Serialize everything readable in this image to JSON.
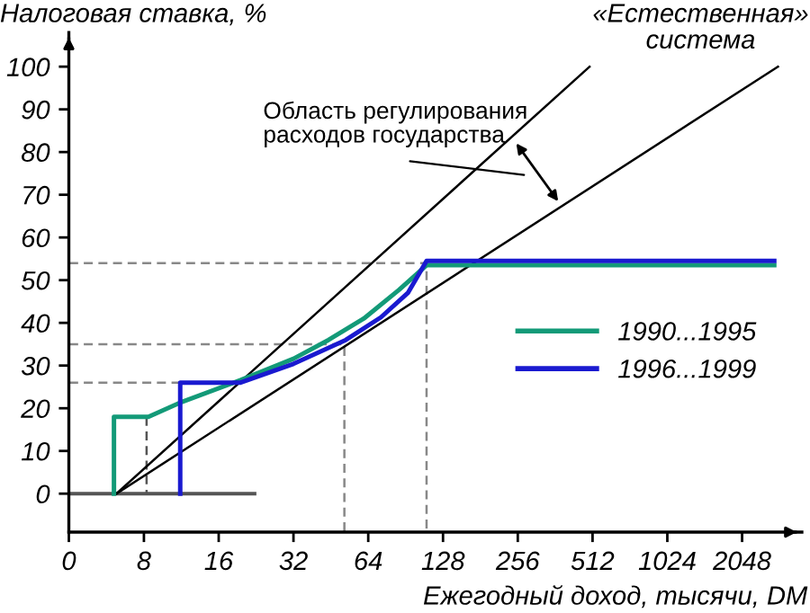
{
  "chart_data": {
    "type": "line",
    "ylabel": "Налоговая ставка, %",
    "xlabel": "Ежегодный доход, тысячи, DM",
    "log": "x",
    "xlim": [
      0,
      3565
    ],
    "ylim": [
      -9,
      108
    ],
    "xticks": [
      0,
      8,
      16,
      32,
      64,
      128,
      256,
      512,
      1024,
      2048
    ],
    "yticks": [
      0,
      10,
      20,
      30,
      40,
      50,
      60,
      70,
      80,
      90,
      100
    ],
    "series": [
      {
        "color": "#888888",
        "line_style": "dashed",
        "x": [
          4,
          109.9,
          109.9
        ],
        "values": [
          54,
          54,
          -9
        ]
      },
      {
        "color": "#888888",
        "line_style": "dashed",
        "x": [
          4,
          51.3,
          51.3
        ],
        "values": [
          35,
          35,
          -9
        ]
      },
      {
        "color": "#888888",
        "line_style": "dashed",
        "x": [
          4,
          11.3
        ],
        "values": [
          26,
          26
        ]
      },
      {
        "color": "#555555",
        "line_style": "dashed",
        "x": [
          8.2,
          8.2
        ],
        "values": [
          18,
          0
        ]
      },
      {
        "color": "#555555",
        "x": [
          4,
          22.3
        ],
        "values": [
          0,
          0
        ]
      },
      {
        "color": "#000000",
        "x": [
          6.2,
          498
        ],
        "values": [
          0,
          100
        ]
      },
      {
        "color": "#000000",
        "x": [
          6.2,
          2856
        ],
        "values": [
          0,
          100
        ]
      },
      {
        "name": "1990...1995",
        "color": "#139a78",
        "x": [
          6.06,
          6.06,
          8.34,
          11.4,
          19.6,
          32,
          44.3,
          61.4,
          85,
          109.9,
          2759
        ],
        "values": [
          0,
          18,
          18,
          21.5,
          26.6,
          31.6,
          36,
          41,
          47.7,
          53.5,
          53.5
        ]
      },
      {
        "name": "1996...1999",
        "color": "#1a1ad0",
        "x": [
          11.2,
          11.2,
          19.6,
          32,
          52,
          72,
          92.4,
          109.9,
          2759
        ],
        "values": [
          0,
          26,
          26,
          30.4,
          36,
          41.3,
          47,
          54.5,
          54.5
        ]
      }
    ],
    "legend": "right",
    "annotations": [
      "Область регулирования\nрасходов государства",
      "«Естественная»\nсистема"
    ]
  }
}
